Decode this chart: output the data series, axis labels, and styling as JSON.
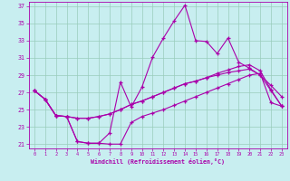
{
  "xlabel": "Windchill (Refroidissement éolien,°C)",
  "xlim": [
    -0.5,
    23.5
  ],
  "ylim": [
    20.5,
    37.5
  ],
  "yticks": [
    21,
    23,
    25,
    27,
    29,
    31,
    33,
    35,
    37
  ],
  "xticks": [
    0,
    1,
    2,
    3,
    4,
    5,
    6,
    7,
    8,
    9,
    10,
    11,
    12,
    13,
    14,
    15,
    16,
    17,
    18,
    19,
    20,
    21,
    22,
    23
  ],
  "bg_color": "#c8eef0",
  "line_color": "#aa00aa",
  "grid_color": "#99ccbb",
  "line1_x": [
    0,
    1,
    2,
    3,
    4,
    5,
    6,
    7,
    8,
    9,
    10,
    11,
    12,
    13,
    14,
    15,
    16,
    17,
    18,
    19,
    20,
    21,
    22,
    23
  ],
  "line1_y": [
    27.2,
    26.2,
    24.3,
    24.2,
    21.3,
    21.1,
    21.1,
    22.3,
    28.2,
    25.3,
    27.6,
    31.1,
    33.3,
    35.3,
    37.1,
    33.0,
    32.9,
    31.5,
    33.3,
    30.5,
    29.8,
    29.0,
    27.2,
    25.4
  ],
  "line2_x": [
    0,
    1,
    2,
    3,
    4,
    5,
    6,
    7,
    8,
    9,
    10,
    11,
    12,
    13,
    14,
    15,
    16,
    17,
    18,
    19,
    20,
    21,
    22,
    23
  ],
  "line2_y": [
    27.2,
    26.2,
    24.3,
    24.2,
    21.3,
    21.1,
    21.1,
    21.0,
    21.0,
    23.5,
    24.2,
    24.6,
    25.0,
    25.5,
    26.0,
    26.5,
    27.0,
    27.5,
    28.0,
    28.5,
    29.0,
    29.2,
    25.8,
    25.4
  ],
  "line3_x": [
    0,
    1,
    2,
    3,
    4,
    5,
    6,
    7,
    8,
    9,
    10,
    11,
    12,
    13,
    14,
    15,
    16,
    17,
    18,
    19,
    20,
    21,
    22,
    23
  ],
  "line3_y": [
    27.2,
    26.2,
    24.3,
    24.2,
    24.0,
    24.0,
    24.2,
    24.5,
    25.0,
    25.6,
    26.0,
    26.5,
    27.0,
    27.5,
    28.0,
    28.3,
    28.7,
    29.0,
    29.3,
    29.5,
    29.7,
    29.0,
    27.8,
    26.5
  ],
  "line4_x": [
    0,
    1,
    2,
    3,
    4,
    5,
    6,
    7,
    8,
    9,
    10,
    11,
    12,
    13,
    14,
    15,
    16,
    17,
    18,
    19,
    20,
    21,
    22,
    23
  ],
  "line4_y": [
    27.2,
    26.2,
    24.3,
    24.2,
    24.0,
    24.0,
    24.2,
    24.5,
    25.0,
    25.6,
    26.0,
    26.5,
    27.0,
    27.5,
    28.0,
    28.3,
    28.7,
    29.2,
    29.6,
    30.0,
    30.2,
    29.5,
    27.3,
    25.4
  ]
}
